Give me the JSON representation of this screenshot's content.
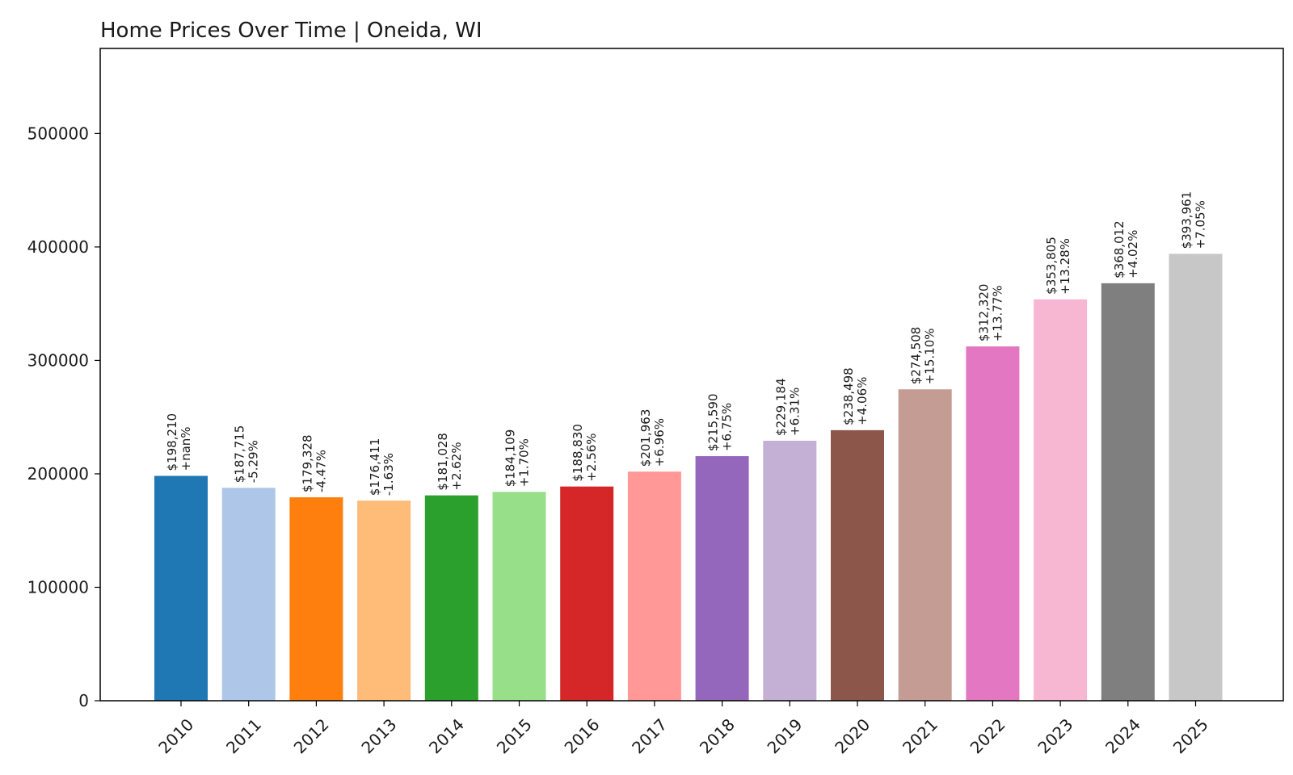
{
  "chart_data": {
    "type": "bar",
    "title": "Home Prices Over Time | Oneida, WI",
    "xlabel": "",
    "ylabel": "",
    "ylim": [
      0,
      575000
    ],
    "yticks": [
      0,
      100000,
      200000,
      300000,
      400000,
      500000
    ],
    "ytick_labels": [
      "0",
      "100000",
      "200000",
      "300000",
      "400000",
      "500000"
    ],
    "grid": false,
    "legend": "none",
    "categories": [
      "2010",
      "2011",
      "2012",
      "2013",
      "2014",
      "2015",
      "2016",
      "2017",
      "2018",
      "2019",
      "2020",
      "2021",
      "2022",
      "2023",
      "2024",
      "2025"
    ],
    "values": [
      198210,
      187715,
      179328,
      176411,
      181028,
      184109,
      188830,
      201963,
      215590,
      229184,
      238498,
      274508,
      312320,
      353805,
      368012,
      393961
    ],
    "value_labels": [
      "$198,210",
      "$187,715",
      "$179,328",
      "$176,411",
      "$181,028",
      "$184,109",
      "$188,830",
      "$201,963",
      "$215,590",
      "$229,184",
      "$238,498",
      "$274,508",
      "$312,320",
      "$353,805",
      "$368,012",
      "$393,961"
    ],
    "change_labels": [
      "+nan%",
      "-5.29%",
      "-4.47%",
      "-1.63%",
      "+2.62%",
      "+1.70%",
      "+2.56%",
      "+6.96%",
      "+6.75%",
      "+6.31%",
      "+4.06%",
      "+15.10%",
      "+13.77%",
      "+13.28%",
      "+4.02%",
      "+7.05%"
    ],
    "colors": [
      "#1f77b4",
      "#aec7e8",
      "#ff7f0e",
      "#ffbb78",
      "#2ca02c",
      "#98df8a",
      "#d62728",
      "#ff9896",
      "#9467bd",
      "#c5b0d5",
      "#8c564b",
      "#c49c94",
      "#e377c2",
      "#f7b6d2",
      "#7f7f7f",
      "#c7c7c7"
    ]
  }
}
